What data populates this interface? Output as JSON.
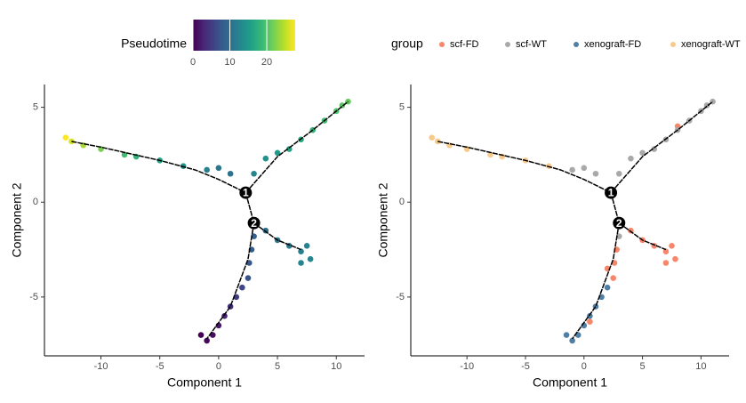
{
  "chart_data": [
    {
      "type": "scatter",
      "x_label": "Component 1",
      "y_label": "Component 2",
      "legend_title": "Pseudotime",
      "colorscale": [
        "#440154",
        "#482878",
        "#3e4989",
        "#31688e",
        "#26828e",
        "#1f9e89",
        "#35b779",
        "#6ece58",
        "#b5de2b",
        "#fde725"
      ],
      "color_lim": [
        0,
        27.7
      ],
      "color_ticks": [
        0,
        10,
        20
      ],
      "xlim": [
        -14.8,
        12.4
      ],
      "ylim": [
        -8.1,
        6.2
      ],
      "xticks": [
        -10,
        -5,
        0,
        5,
        10
      ],
      "yticks": [
        -5,
        0,
        5
      ],
      "x": [
        -1.5,
        -1,
        -0.5,
        0,
        0.5,
        1,
        1.5,
        2,
        2.5,
        2.6,
        2.8,
        3,
        4,
        5,
        6,
        7,
        7.5,
        7.8,
        7,
        3,
        4,
        5,
        6,
        7,
        8,
        9,
        10,
        11,
        10.5,
        1,
        0,
        -1,
        -3,
        -5,
        -7,
        -8,
        -10,
        -11.5,
        -12.5,
        -13
      ],
      "y": [
        -7,
        -7.3,
        -7,
        -6.5,
        -6,
        -5.5,
        -5,
        -4.5,
        -4,
        -3.2,
        -2.5,
        -1.8,
        -1.5,
        -2,
        -2.3,
        -2.6,
        -2.3,
        -3,
        -3.2,
        1.5,
        2.3,
        2.6,
        2.8,
        3.3,
        3.8,
        4.3,
        4.8,
        5.3,
        5.1,
        1.5,
        1.8,
        1.7,
        1.9,
        2.2,
        2.4,
        2.5,
        2.8,
        3,
        3.2,
        3.4
      ],
      "pseudotime": [
        0,
        0.5,
        1,
        2,
        3,
        4,
        5,
        6,
        7,
        7.5,
        8,
        8.5,
        10,
        11,
        11.5,
        12,
        12.5,
        12.8,
        12.5,
        13,
        14,
        15,
        16,
        17,
        18,
        19,
        20,
        21,
        20.5,
        10.5,
        11,
        12,
        14,
        16,
        18,
        19,
        22,
        24,
        26,
        28
      ],
      "trajectory": [
        {
          "x": [
            -12.5,
            -10,
            -5,
            -2,
            0,
            2.3
          ],
          "y": [
            3.2,
            2.9,
            2.2,
            1.7,
            1.2,
            0.5
          ]
        },
        {
          "x": [
            2.3,
            5,
            8,
            11
          ],
          "y": [
            0.5,
            2.4,
            3.8,
            5.3
          ]
        },
        {
          "x": [
            2.3,
            3
          ],
          "y": [
            0.5,
            -1.1
          ]
        },
        {
          "x": [
            3,
            5,
            7
          ],
          "y": [
            -1.1,
            -2,
            -2.5
          ]
        },
        {
          "x": [
            3,
            2.5,
            1,
            -1
          ],
          "y": [
            -1.1,
            -3,
            -5.5,
            -7.2
          ]
        }
      ],
      "branch_points": [
        {
          "label": "1",
          "x": 2.3,
          "y": 0.5
        },
        {
          "label": "2",
          "x": 3,
          "y": -1.1
        }
      ]
    },
    {
      "type": "scatter",
      "x_label": "Component 1",
      "y_label": "Component 2",
      "legend_title": "group",
      "xlim": [
        -14.8,
        12.4
      ],
      "ylim": [
        -8.1,
        6.2
      ],
      "xticks": [
        -10,
        -5,
        0,
        5,
        10
      ],
      "yticks": [
        -5,
        0,
        5
      ],
      "series": [
        {
          "name": "scf-FD",
          "color": "#f8866b",
          "x": [
            2,
            2.5,
            2.6,
            2.8,
            4,
            5,
            6,
            7,
            7.5,
            7.8,
            7,
            8,
            0.5
          ],
          "y": [
            -3.5,
            -4,
            -3.2,
            -2.5,
            -1.5,
            -2,
            -2.3,
            -2.6,
            -2.3,
            -3,
            -3.2,
            4,
            -6.3
          ]
        },
        {
          "name": "scf-WT",
          "color": "#a9a9a9",
          "x": [
            3,
            4,
            5,
            6,
            7,
            8,
            9,
            10,
            11,
            10.5,
            1,
            0,
            -1,
            3
          ],
          "y": [
            1.5,
            2.3,
            2.6,
            2.8,
            3.3,
            3.8,
            4.3,
            4.8,
            5.3,
            5.1,
            1.5,
            1.8,
            1.7,
            -1.8
          ]
        },
        {
          "name": "xenograft-FD",
          "color": "#4f7fa5",
          "x": [
            -1.5,
            -1,
            -0.5,
            0,
            0.5,
            1,
            1.5,
            2
          ],
          "y": [
            -7,
            -7.3,
            -7,
            -6.5,
            -6,
            -5.5,
            -5,
            -4.5
          ]
        },
        {
          "name": "xenograft-WT",
          "color": "#f9c98a",
          "x": [
            -3,
            -5,
            -7,
            -8,
            -10,
            -11.5,
            -12.5,
            -13
          ],
          "y": [
            1.9,
            2.2,
            2.4,
            2.5,
            2.8,
            3,
            3.2,
            3.4
          ]
        }
      ],
      "trajectory": [
        {
          "x": [
            -12.5,
            -10,
            -5,
            -2,
            0,
            2.3
          ],
          "y": [
            3.2,
            2.9,
            2.2,
            1.7,
            1.2,
            0.5
          ]
        },
        {
          "x": [
            2.3,
            5,
            8,
            11
          ],
          "y": [
            0.5,
            2.4,
            3.8,
            5.3
          ]
        },
        {
          "x": [
            2.3,
            3
          ],
          "y": [
            0.5,
            -1.1
          ]
        },
        {
          "x": [
            3,
            5,
            7
          ],
          "y": [
            -1.1,
            -2,
            -2.5
          ]
        },
        {
          "x": [
            3,
            2.5,
            1,
            -1
          ],
          "y": [
            -1.1,
            -3,
            -5.5,
            -7.2
          ]
        }
      ],
      "branch_points": [
        {
          "label": "1",
          "x": 2.3,
          "y": 0.5
        },
        {
          "label": "2",
          "x": 3,
          "y": -1.1
        }
      ]
    }
  ]
}
